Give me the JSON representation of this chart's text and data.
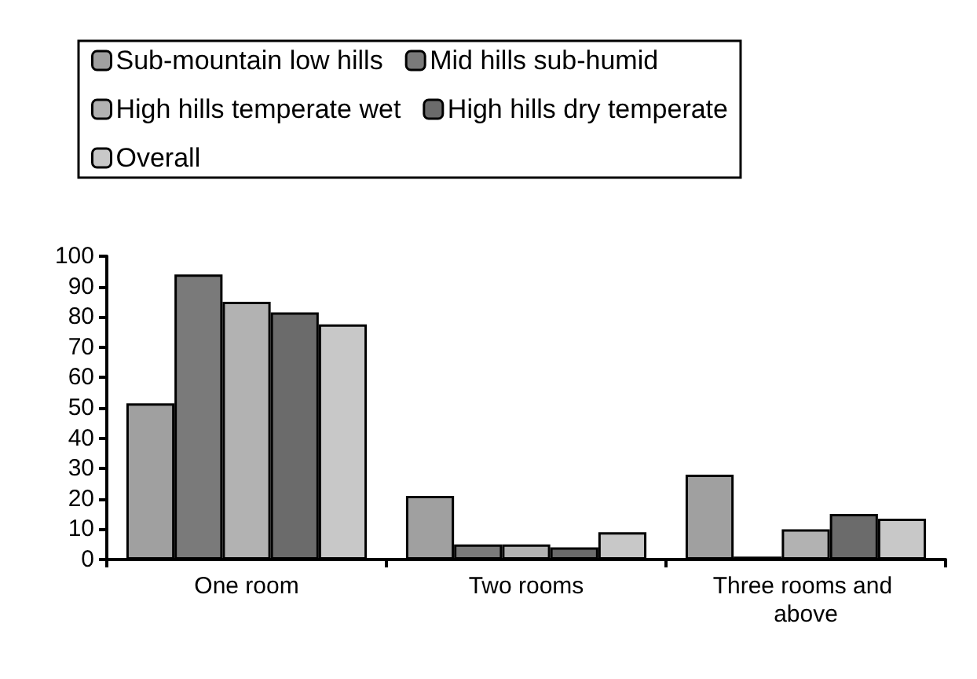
{
  "chart_data": {
    "type": "bar",
    "categories": [
      "One room",
      "Two rooms",
      "Three rooms and above"
    ],
    "series": [
      {
        "name": "Sub-mountain low hills",
        "color": "#a0a0a0",
        "values": [
          51.5,
          21,
          28
        ]
      },
      {
        "name": "Mid hills sub-humid",
        "color": "#7a7a7a",
        "values": [
          94,
          5,
          1
        ]
      },
      {
        "name": "High hills temperate wet",
        "color": "#b2b2b2",
        "values": [
          85,
          5,
          10
        ]
      },
      {
        "name": "High hills dry temperate",
        "color": "#6b6b6b",
        "values": [
          81.5,
          4,
          15
        ]
      },
      {
        "name": "Overall",
        "color": "#c8c8c8",
        "values": [
          77.5,
          9,
          13.5
        ]
      }
    ],
    "ylim": [
      0,
      100
    ],
    "yticks": [
      0,
      10,
      20,
      30,
      40,
      50,
      60,
      70,
      80,
      90,
      100
    ],
    "grid": false,
    "legend": "top"
  }
}
